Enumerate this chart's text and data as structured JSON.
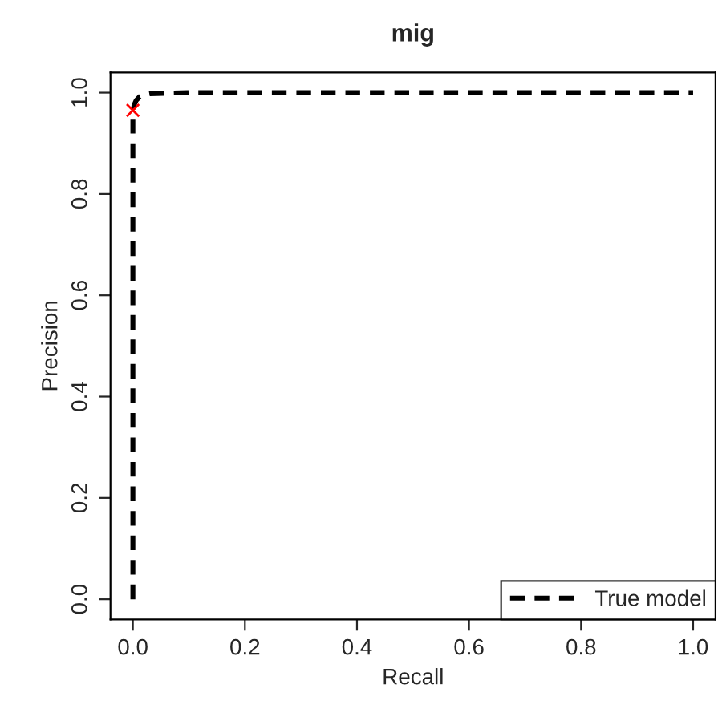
{
  "chart_data": {
    "type": "line",
    "title": "mig",
    "xlabel": "Recall",
    "ylabel": "Precision",
    "series": [
      {
        "name": "True model",
        "color": "#000000",
        "line_style": "dashed",
        "x": [
          0,
          0,
          0.002,
          0.006,
          0.012,
          0.02,
          0.03,
          0.1,
          0.5,
          1.0
        ],
        "values": [
          0,
          0.96,
          0.975,
          0.985,
          0.992,
          0.996,
          0.998,
          1.0,
          1.0,
          1.0
        ]
      },
      {
        "type": "scatter",
        "color": "#ff0000",
        "marker": "cross",
        "x": [
          0
        ],
        "values": [
          0.965
        ]
      }
    ],
    "xlim": [
      -0.04,
      1.04
    ],
    "ylim": [
      -0.04,
      1.04
    ],
    "xticks": [
      {
        "value": 0,
        "label": "0.0"
      },
      0.2,
      0.4,
      0.6,
      0.8,
      {
        "value": 1,
        "label": "1.0"
      }
    ],
    "yticks": [
      {
        "value": 0,
        "label": "0.0"
      },
      0.2,
      0.4,
      0.6,
      0.8,
      {
        "value": 1,
        "label": "1.0"
      }
    ],
    "grid": false,
    "legend": "bottom right"
  }
}
